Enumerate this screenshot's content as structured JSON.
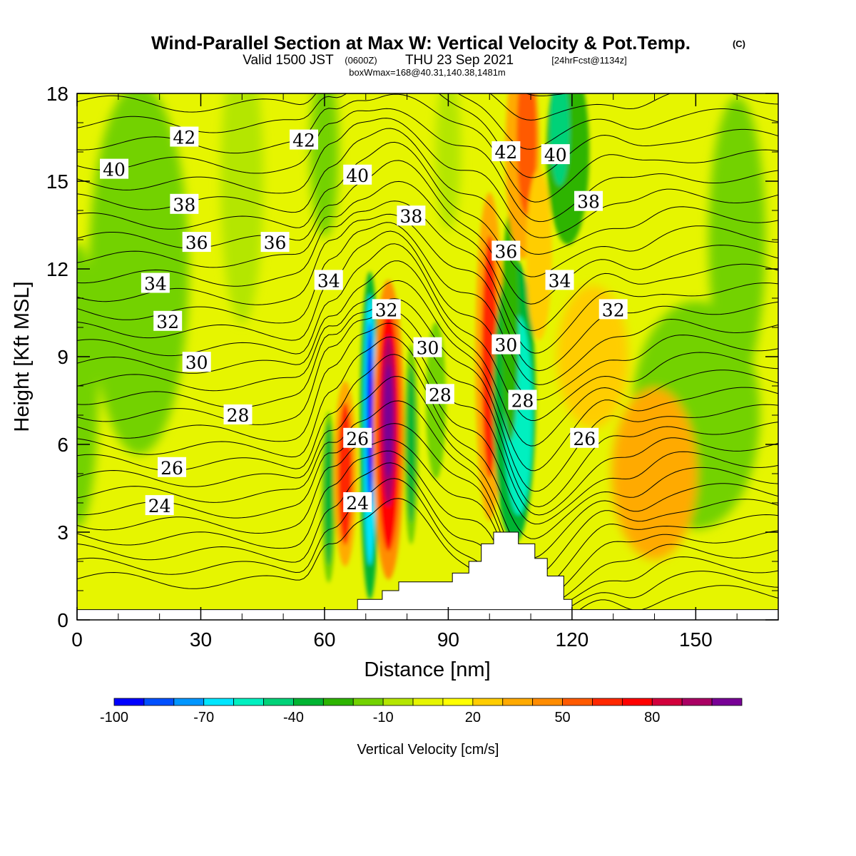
{
  "title": {
    "main": "Wind-Parallel Section at Max W: Vertical Velocity & Pot.Temp.",
    "copyright": "(C)",
    "valid_prefix": "Valid 1500 JST",
    "valid_utc": "(0600Z)",
    "valid_date": "THU 23 Sep 2021",
    "forecast": "[24hrFcst@1134z]",
    "boxinfo": "boxWmax=168@40.31,140.38,1481m"
  },
  "colors": {
    "background": "#ffffff",
    "terrain": "#ffffff",
    "contour_line": "#000000",
    "frame": "#000000"
  },
  "chart_data": {
    "type": "heatmap",
    "xlabel": "Distance [nm]",
    "ylabel": "Height [Kft MSL]",
    "xlim": [
      0,
      170
    ],
    "ylim": [
      0,
      18
    ],
    "x_ticks": [
      "0",
      "30",
      "60",
      "90",
      "120",
      "150"
    ],
    "x_tick_values": [
      0,
      30,
      60,
      90,
      120,
      150
    ],
    "y_ticks": [
      "0",
      "3",
      "6",
      "9",
      "12",
      "15",
      "18"
    ],
    "y_tick_values": [
      0,
      3,
      6,
      9,
      12,
      15,
      18
    ],
    "colorbar": {
      "label": "Vertical Velocity [cm/s]",
      "tick_labels": [
        "-100",
        "-70",
        "-40",
        "-10",
        "20",
        "50",
        "80"
      ],
      "tick_values": [
        -100,
        -70,
        -40,
        -10,
        20,
        50,
        80
      ],
      "range": [
        -100,
        100
      ],
      "colors": [
        "#0000ff",
        "#0050ff",
        "#0096ff",
        "#00e6ff",
        "#00f0c0",
        "#00d278",
        "#00b432",
        "#2db400",
        "#73d200",
        "#b4e600",
        "#e6f500",
        "#ffff00",
        "#ffcd00",
        "#ffaa00",
        "#ff8c00",
        "#ff5a00",
        "#ff2800",
        "#ff0000",
        "#d2003c",
        "#aa0064",
        "#780096"
      ]
    },
    "contour_variable": "Potential Temperature",
    "contour_labels": [
      {
        "text": "42",
        "x": 26,
        "y": 16.5
      },
      {
        "text": "42",
        "x": 55,
        "y": 16.4
      },
      {
        "text": "42",
        "x": 104,
        "y": 16.0
      },
      {
        "text": "40",
        "x": 9,
        "y": 15.4
      },
      {
        "text": "40",
        "x": 68,
        "y": 15.2
      },
      {
        "text": "40",
        "x": 116,
        "y": 15.9
      },
      {
        "text": "38",
        "x": 26,
        "y": 14.2
      },
      {
        "text": "38",
        "x": 81,
        "y": 13.8
      },
      {
        "text": "38",
        "x": 124,
        "y": 14.3
      },
      {
        "text": "36",
        "x": 29,
        "y": 12.9
      },
      {
        "text": "36",
        "x": 48,
        "y": 12.9
      },
      {
        "text": "36",
        "x": 104,
        "y": 12.6
      },
      {
        "text": "34",
        "x": 19,
        "y": 11.5
      },
      {
        "text": "34",
        "x": 61,
        "y": 11.6
      },
      {
        "text": "34",
        "x": 117,
        "y": 11.6
      },
      {
        "text": "32",
        "x": 75,
        "y": 10.6
      },
      {
        "text": "32",
        "x": 22,
        "y": 10.2
      },
      {
        "text": "32",
        "x": 130,
        "y": 10.6
      },
      {
        "text": "30",
        "x": 85,
        "y": 9.3
      },
      {
        "text": "30",
        "x": 29,
        "y": 8.8
      },
      {
        "text": "30",
        "x": 104,
        "y": 9.4
      },
      {
        "text": "28",
        "x": 88,
        "y": 7.7
      },
      {
        "text": "28",
        "x": 39,
        "y": 7.0
      },
      {
        "text": "28",
        "x": 108,
        "y": 7.5
      },
      {
        "text": "26",
        "x": 68,
        "y": 6.2
      },
      {
        "text": "26",
        "x": 23,
        "y": 5.2
      },
      {
        "text": "26",
        "x": 123,
        "y": 6.2
      },
      {
        "text": "24",
        "x": 68,
        "y": 4.0
      },
      {
        "text": "24",
        "x": 20,
        "y": 3.9
      }
    ],
    "terrain_profile": {
      "x": [
        68,
        68,
        74,
        74,
        78,
        78,
        91,
        91,
        95,
        95,
        98,
        98,
        101,
        101,
        107,
        107,
        111,
        111,
        114,
        114,
        118,
        118,
        120,
        120
      ],
      "y": [
        0,
        0.7,
        0.7,
        1.0,
        1.0,
        1.3,
        1.3,
        1.6,
        1.6,
        2.0,
        2.0,
        2.6,
        2.6,
        3.0,
        3.0,
        2.6,
        2.6,
        2.1,
        2.1,
        1.5,
        1.5,
        0.7,
        0.7,
        0
      ]
    },
    "w_features": [
      {
        "x": 61,
        "y": 4.2,
        "w": -40
      },
      {
        "x": 71,
        "y": 6.5,
        "w": -90
      },
      {
        "x": 75,
        "y": 6.5,
        "w": 95
      },
      {
        "x": 65,
        "y": 5.0,
        "w": 55
      },
      {
        "x": 81,
        "y": 6.0,
        "w": -40
      },
      {
        "x": 100,
        "y": 9.0,
        "w": 60
      },
      {
        "x": 107,
        "y": 7.0,
        "w": -60
      },
      {
        "x": 108,
        "y": 16.0,
        "w": 40
      },
      {
        "x": 118,
        "y": 16.0,
        "w": -40
      },
      {
        "x": 150,
        "y": 7.0,
        "w": -20
      },
      {
        "x": 140,
        "y": 5.0,
        "w": 25
      }
    ]
  }
}
